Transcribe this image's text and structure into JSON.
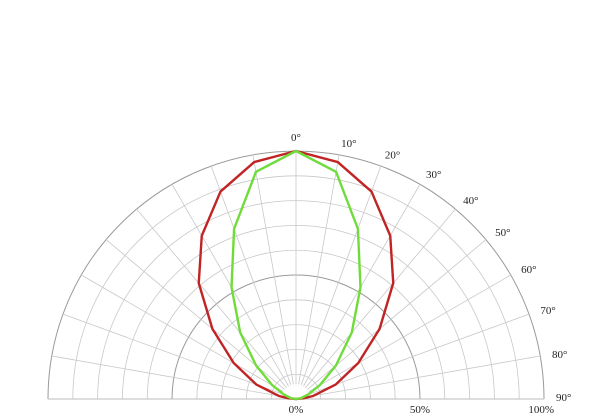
{
  "chart_data": {
    "type": "polar",
    "title": "",
    "angle_unit": "degrees",
    "angle_ticks": [
      {
        "value": 0,
        "label": "0°"
      },
      {
        "value": 10,
        "label": "10°"
      },
      {
        "value": 20,
        "label": "20°"
      },
      {
        "value": 30,
        "label": "30°"
      },
      {
        "value": 40,
        "label": "40°"
      },
      {
        "value": 50,
        "label": "50°"
      },
      {
        "value": 60,
        "label": "60°"
      },
      {
        "value": 70,
        "label": "70°"
      },
      {
        "value": 80,
        "label": "80°"
      },
      {
        "value": 90,
        "label": "90°"
      }
    ],
    "radial_ticks": [
      {
        "value": 0,
        "label": "0%"
      },
      {
        "value": 50,
        "label": "50%"
      },
      {
        "value": 100,
        "label": "100%"
      }
    ],
    "radial_range": [
      0,
      100
    ],
    "angle_range": [
      -90,
      90
    ],
    "grid": true,
    "series": [
      {
        "color": "#c02424",
        "points": [
          {
            "angle": 0,
            "value": 100
          },
          {
            "angle": 10,
            "value": 97
          },
          {
            "angle": 20,
            "value": 89
          },
          {
            "angle": 30,
            "value": 76
          },
          {
            "angle": 40,
            "value": 61
          },
          {
            "angle": 50,
            "value": 44
          },
          {
            "angle": 60,
            "value": 29
          },
          {
            "angle": 70,
            "value": 17
          },
          {
            "angle": 80,
            "value": 7
          },
          {
            "angle": 85,
            "value": 3
          },
          {
            "angle": 90,
            "value": 0
          }
        ]
      },
      {
        "color": "#6fdc3a",
        "points": [
          {
            "angle": 0,
            "value": 100
          },
          {
            "angle": 10,
            "value": 93
          },
          {
            "angle": 20,
            "value": 73
          },
          {
            "angle": 30,
            "value": 52
          },
          {
            "angle": 40,
            "value": 35
          },
          {
            "angle": 50,
            "value": 21
          },
          {
            "angle": 60,
            "value": 11
          },
          {
            "angle": 70,
            "value": 5
          },
          {
            "angle": 80,
            "value": 2
          },
          {
            "angle": 90,
            "value": 0
          }
        ]
      }
    ]
  }
}
